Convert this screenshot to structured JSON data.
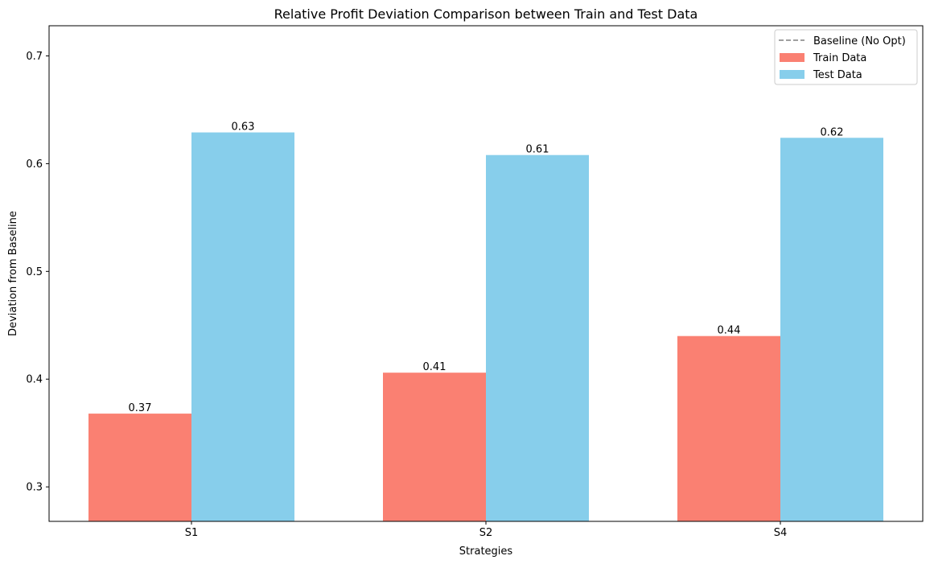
{
  "chart_data": {
    "type": "bar",
    "title": "Relative Profit Deviation Comparison between Train and Test Data",
    "xlabel": "Strategies",
    "ylabel": "Deviation from Baseline",
    "categories": [
      "S1",
      "S2",
      "S4"
    ],
    "series": [
      {
        "name": "Train Data",
        "color": "#fa8072",
        "values": [
          0.368,
          0.406,
          0.44
        ],
        "labels": [
          "0.37",
          "0.41",
          "0.44"
        ]
      },
      {
        "name": "Test Data",
        "color": "#87ceeb",
        "values": [
          0.629,
          0.608,
          0.624
        ],
        "labels": [
          "0.63",
          "0.61",
          "0.62"
        ]
      }
    ],
    "baseline": {
      "name": "Baseline (No Opt)",
      "value": 0,
      "color": "#808080",
      "style": "dashed"
    },
    "ylim": [
      0.268,
      0.728
    ],
    "yticks": [
      0.3,
      0.4,
      0.5,
      0.6,
      0.7
    ],
    "ytick_labels": [
      "0.3",
      "0.4",
      "0.5",
      "0.6",
      "0.7"
    ],
    "grid": false,
    "legend_position": "top-right"
  }
}
